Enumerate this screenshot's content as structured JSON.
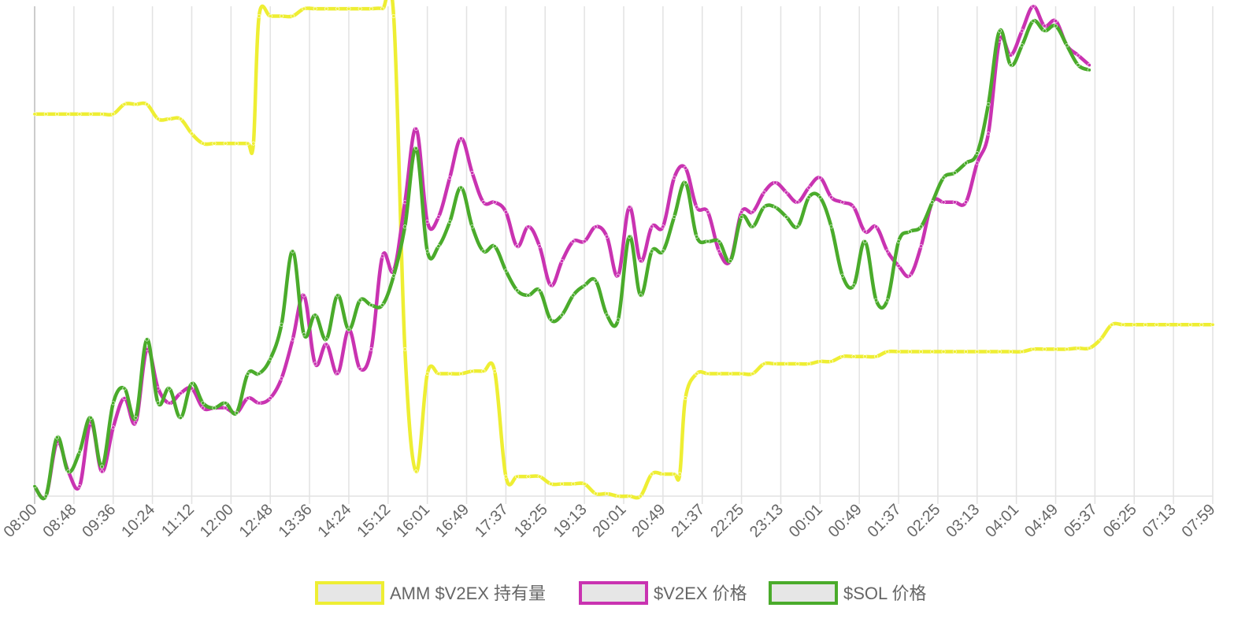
{
  "chart_data": {
    "type": "line",
    "title": "",
    "xlabel": "",
    "ylabel": "",
    "grid": "vertical",
    "legend_position": "bottom",
    "x_tick_labels": [
      "08:00",
      "08:48",
      "09:36",
      "10:24",
      "11:12",
      "12:00",
      "12:48",
      "13:36",
      "14:24",
      "15:12",
      "16:01",
      "16:49",
      "17:37",
      "18:25",
      "19:13",
      "20:01",
      "20:49",
      "21:37",
      "22:25",
      "23:13",
      "00:01",
      "00:49",
      "01:37",
      "02:25",
      "03:13",
      "04:01",
      "04:49",
      "05:37",
      "06:25",
      "07:13",
      "07:59"
    ],
    "ylim": [
      0,
      100
    ],
    "series": [
      {
        "name": "AMM $V2EX 持有量",
        "color": "#eeee33",
        "points": [
          [
            0,
            78
          ],
          [
            1,
            78
          ],
          [
            2,
            78
          ],
          [
            3,
            78
          ],
          [
            4,
            78
          ],
          [
            5,
            78
          ],
          [
            6,
            78
          ],
          [
            7,
            78
          ],
          [
            8,
            80
          ],
          [
            9,
            80
          ],
          [
            10,
            80
          ],
          [
            11,
            77
          ],
          [
            12,
            77
          ],
          [
            13,
            77
          ],
          [
            14,
            74
          ],
          [
            15,
            72
          ],
          [
            16,
            72
          ],
          [
            17,
            72
          ],
          [
            18,
            72
          ],
          [
            19,
            72
          ],
          [
            19.5,
            72
          ],
          [
            20,
            98
          ],
          [
            21,
            98
          ],
          [
            22,
            98
          ],
          [
            23,
            98
          ],
          [
            24,
            99.5
          ],
          [
            25,
            99.5
          ],
          [
            26,
            99.5
          ],
          [
            27,
            99.5
          ],
          [
            28,
            99.5
          ],
          [
            29,
            99.5
          ],
          [
            30,
            99.5
          ],
          [
            31,
            99.5
          ],
          [
            32,
            98
          ],
          [
            33,
            30
          ],
          [
            34,
            5
          ],
          [
            35,
            25
          ],
          [
            36,
            25
          ],
          [
            37,
            25
          ],
          [
            38,
            25
          ],
          [
            39,
            25.5
          ],
          [
            40,
            25.5
          ],
          [
            41,
            25.5
          ],
          [
            42,
            4
          ],
          [
            43,
            4
          ],
          [
            44,
            4
          ],
          [
            45,
            4
          ],
          [
            46,
            2.5
          ],
          [
            47,
            2.5
          ],
          [
            48,
            2.5
          ],
          [
            49,
            2.5
          ],
          [
            50,
            0.5
          ],
          [
            51,
            0.5
          ],
          [
            52,
            0
          ],
          [
            53,
            0
          ],
          [
            54,
            0
          ],
          [
            55,
            4.5
          ],
          [
            56,
            4.5
          ],
          [
            57,
            4.5
          ],
          [
            57.5,
            4.5
          ],
          [
            58,
            20
          ],
          [
            59,
            25
          ],
          [
            60,
            25
          ],
          [
            61,
            25
          ],
          [
            62,
            25
          ],
          [
            63,
            25
          ],
          [
            64,
            25
          ],
          [
            65,
            27
          ],
          [
            66,
            27
          ],
          [
            67,
            27
          ],
          [
            68,
            27
          ],
          [
            69,
            27
          ],
          [
            70,
            27.5
          ],
          [
            71,
            27.5
          ],
          [
            72,
            28.5
          ],
          [
            73,
            28.5
          ],
          [
            74,
            28.5
          ],
          [
            75,
            28.5
          ],
          [
            76,
            29.5
          ],
          [
            77,
            29.5
          ],
          [
            78,
            29.5
          ],
          [
            79,
            29.5
          ],
          [
            80,
            29.5
          ],
          [
            81,
            29.5
          ],
          [
            82,
            29.5
          ],
          [
            83,
            29.5
          ],
          [
            84,
            29.5
          ],
          [
            85,
            29.5
          ],
          [
            86,
            29.5
          ],
          [
            87,
            29.5
          ],
          [
            88,
            29.5
          ],
          [
            89,
            30
          ],
          [
            90,
            30
          ],
          [
            91,
            30
          ],
          [
            92,
            30
          ],
          [
            93,
            30.2
          ],
          [
            94,
            30.2
          ],
          [
            95,
            32
          ],
          [
            96,
            35
          ],
          [
            97,
            35
          ],
          [
            98,
            35
          ],
          [
            99,
            35
          ],
          [
            100,
            35
          ],
          [
            101,
            35
          ],
          [
            102,
            35
          ],
          [
            103,
            35
          ],
          [
            104,
            35
          ],
          [
            105,
            35
          ]
        ]
      },
      {
        "name": "$V2EX 价格",
        "color": "#c933b1",
        "points": [
          [
            0,
            2
          ],
          [
            1,
            0
          ],
          [
            2,
            11
          ],
          [
            3,
            5
          ],
          [
            4,
            2
          ],
          [
            5,
            15
          ],
          [
            6,
            5
          ],
          [
            7,
            14
          ],
          [
            8,
            20
          ],
          [
            9,
            15
          ],
          [
            10,
            30
          ],
          [
            11,
            22
          ],
          [
            12,
            19
          ],
          [
            13,
            21
          ],
          [
            14,
            22
          ],
          [
            15,
            18
          ],
          [
            16,
            18
          ],
          [
            17,
            18
          ],
          [
            18,
            17
          ],
          [
            19,
            20
          ],
          [
            20,
            19
          ],
          [
            21,
            20
          ],
          [
            22,
            24
          ],
          [
            23,
            32
          ],
          [
            24,
            41
          ],
          [
            25,
            27
          ],
          [
            26,
            31
          ],
          [
            27,
            25
          ],
          [
            28,
            34
          ],
          [
            29,
            26
          ],
          [
            30,
            30
          ],
          [
            31,
            49
          ],
          [
            32,
            46
          ],
          [
            33,
            60
          ],
          [
            34,
            75
          ],
          [
            35,
            56
          ],
          [
            36,
            57
          ],
          [
            37,
            65
          ],
          [
            38,
            73
          ],
          [
            39,
            66
          ],
          [
            40,
            60
          ],
          [
            41,
            60
          ],
          [
            42,
            58
          ],
          [
            43,
            51
          ],
          [
            44,
            55
          ],
          [
            45,
            51
          ],
          [
            46,
            43
          ],
          [
            47,
            48
          ],
          [
            48,
            52
          ],
          [
            49,
            52
          ],
          [
            50,
            55
          ],
          [
            51,
            53
          ],
          [
            52,
            45
          ],
          [
            53,
            59
          ],
          [
            54,
            48
          ],
          [
            55,
            55
          ],
          [
            56,
            55
          ],
          [
            57,
            65
          ],
          [
            58,
            67
          ],
          [
            59,
            59
          ],
          [
            60,
            58
          ],
          [
            61,
            50
          ],
          [
            62,
            48
          ],
          [
            63,
            58
          ],
          [
            64,
            58
          ],
          [
            65,
            62
          ],
          [
            66,
            64
          ],
          [
            67,
            62
          ],
          [
            68,
            60
          ],
          [
            69,
            63
          ],
          [
            70,
            65
          ],
          [
            71,
            61
          ],
          [
            72,
            60
          ],
          [
            73,
            59
          ],
          [
            74,
            54
          ],
          [
            75,
            55
          ],
          [
            76,
            50
          ],
          [
            77,
            47
          ],
          [
            78,
            45
          ],
          [
            79,
            51
          ],
          [
            80,
            60
          ],
          [
            81,
            60
          ],
          [
            82,
            60
          ],
          [
            83,
            60
          ],
          [
            84,
            68
          ],
          [
            85,
            74
          ],
          [
            86,
            93
          ],
          [
            87,
            90
          ],
          [
            88,
            95
          ],
          [
            89,
            100
          ],
          [
            90,
            96
          ],
          [
            91,
            97
          ],
          [
            92,
            92
          ],
          [
            93,
            90
          ],
          [
            94,
            88
          ]
        ]
      },
      {
        "name": "$SOL 价格",
        "color": "#4aab2b",
        "points": [
          [
            0,
            2
          ],
          [
            1,
            0
          ],
          [
            2,
            12
          ],
          [
            3,
            5
          ],
          [
            4,
            9
          ],
          [
            5,
            16
          ],
          [
            6,
            6
          ],
          [
            7,
            19
          ],
          [
            8,
            22
          ],
          [
            9,
            16
          ],
          [
            10,
            32
          ],
          [
            11,
            19
          ],
          [
            12,
            22
          ],
          [
            13,
            16
          ],
          [
            14,
            23
          ],
          [
            15,
            19
          ],
          [
            16,
            18
          ],
          [
            17,
            19
          ],
          [
            18,
            17
          ],
          [
            19,
            25
          ],
          [
            20,
            25
          ],
          [
            21,
            28
          ],
          [
            22,
            35
          ],
          [
            23,
            50
          ],
          [
            24,
            33
          ],
          [
            25,
            37
          ],
          [
            26,
            32
          ],
          [
            27,
            41
          ],
          [
            28,
            34
          ],
          [
            29,
            40
          ],
          [
            30,
            39
          ],
          [
            31,
            39
          ],
          [
            32,
            45
          ],
          [
            33,
            55
          ],
          [
            34,
            71
          ],
          [
            35,
            50
          ],
          [
            36,
            51
          ],
          [
            37,
            56
          ],
          [
            38,
            63
          ],
          [
            39,
            55
          ],
          [
            40,
            50
          ],
          [
            41,
            51
          ],
          [
            42,
            46
          ],
          [
            43,
            42
          ],
          [
            44,
            41
          ],
          [
            45,
            42
          ],
          [
            46,
            36
          ],
          [
            47,
            37
          ],
          [
            48,
            41
          ],
          [
            49,
            43
          ],
          [
            50,
            44
          ],
          [
            51,
            37
          ],
          [
            52,
            36
          ],
          [
            53,
            53
          ],
          [
            54,
            41
          ],
          [
            55,
            50
          ],
          [
            56,
            50
          ],
          [
            57,
            57
          ],
          [
            58,
            64
          ],
          [
            59,
            53
          ],
          [
            60,
            52
          ],
          [
            61,
            52
          ],
          [
            62,
            48
          ],
          [
            63,
            57
          ],
          [
            64,
            55
          ],
          [
            65,
            59
          ],
          [
            66,
            59
          ],
          [
            67,
            57
          ],
          [
            68,
            55
          ],
          [
            69,
            61
          ],
          [
            70,
            61
          ],
          [
            71,
            55
          ],
          [
            72,
            45
          ],
          [
            73,
            43
          ],
          [
            74,
            52
          ],
          [
            75,
            40
          ],
          [
            76,
            40
          ],
          [
            77,
            52
          ],
          [
            78,
            54
          ],
          [
            79,
            55
          ],
          [
            80,
            60
          ],
          [
            81,
            65
          ],
          [
            82,
            66
          ],
          [
            83,
            68
          ],
          [
            84,
            70
          ],
          [
            85,
            80
          ],
          [
            86,
            95
          ],
          [
            87,
            88
          ],
          [
            88,
            92
          ],
          [
            89,
            97
          ],
          [
            90,
            95
          ],
          [
            91,
            96
          ],
          [
            92,
            92
          ],
          [
            93,
            88
          ],
          [
            94,
            87
          ]
        ]
      }
    ]
  }
}
